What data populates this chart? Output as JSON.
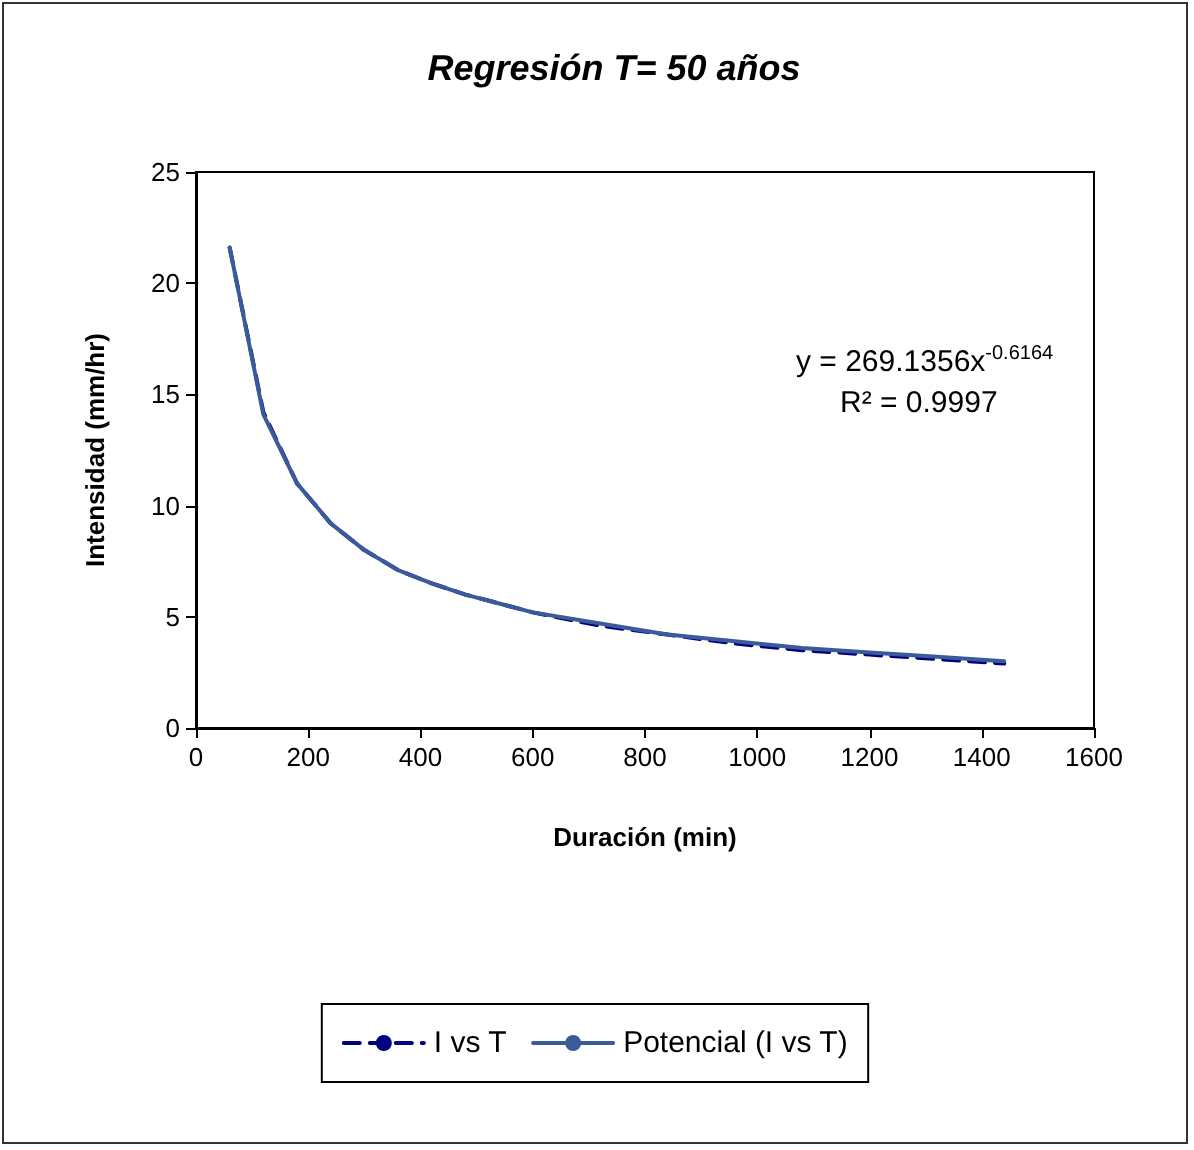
{
  "chart_data": {
    "type": "line",
    "title": "Regresión T= 50 años",
    "xlabel": "Duración (min)",
    "ylabel": "Intensidad (mm/hr)",
    "xlim": [
      0,
      1600
    ],
    "xticks": [
      0,
      200,
      400,
      600,
      800,
      1000,
      1200,
      1400,
      1600
    ],
    "ylim": [
      0,
      25
    ],
    "yticks": [
      0,
      5,
      10,
      15,
      20,
      25
    ],
    "grid": false,
    "legend": "bottom",
    "marker": "none",
    "annotations": [
      "y = 269.1356x$^{-0.6164}$",
      "R² = 0.9997"
    ],
    "series": [
      {
        "name": "I vs T",
        "color": "#000080",
        "line_style": "dashed",
        "x": [
          60,
          120,
          180,
          240,
          300,
          360,
          420,
          480,
          540,
          600,
          720,
          840,
          960,
          1080,
          1200,
          1320,
          1440
        ],
        "values": [
          21.6,
          14.2,
          11.0,
          9.2,
          8.0,
          7.1,
          6.5,
          6.0,
          5.6,
          5.2,
          4.6,
          4.2,
          3.8,
          3.5,
          3.3,
          3.1,
          2.9
        ]
      },
      {
        "name": "Potencial (I vs T)",
        "color": "#3a5a9a",
        "line_style": "solid",
        "x": [
          60,
          120,
          180,
          240,
          300,
          360,
          420,
          480,
          540,
          600,
          720,
          840,
          960,
          1080,
          1200,
          1320,
          1440
        ],
        "values": [
          21.6,
          14.1,
          11.0,
          9.2,
          8.0,
          7.1,
          6.5,
          6.0,
          5.6,
          5.2,
          4.7,
          4.2,
          3.9,
          3.6,
          3.4,
          3.2,
          3.0
        ]
      }
    ]
  }
}
